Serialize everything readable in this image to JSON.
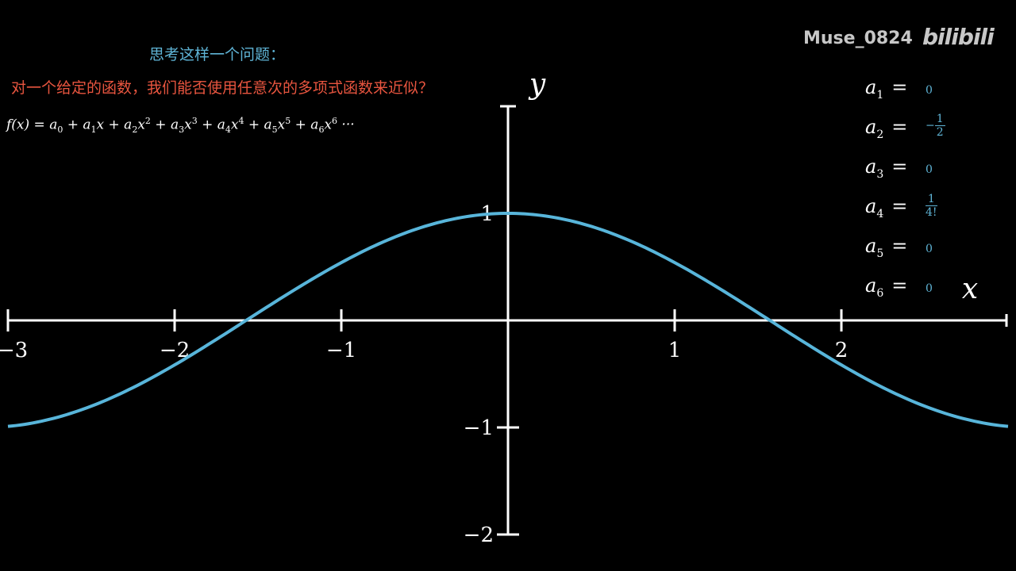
{
  "question": {
    "title": "思考这样一个问题：",
    "text": "对一个给定的函数，我们能否使用任意次的多项式函数来近似？"
  },
  "polynomial": {
    "lhs": "f(x) = ",
    "terms": [
      "a",
      "0",
      " + a",
      "1",
      "x + a",
      "2",
      "x",
      "2",
      " + a",
      "3",
      "x",
      "3",
      " + a",
      "4",
      "x",
      "4",
      " + a",
      "5",
      "x",
      "5",
      " + a",
      "6",
      "x",
      "6",
      " ···"
    ]
  },
  "watermark": {
    "user": "Muse_0824",
    "logo": "bilibili"
  },
  "coefficients": [
    {
      "name": "a",
      "index": "0",
      "value": ""
    },
    {
      "name": "a",
      "index": "1",
      "value": "0"
    },
    {
      "name": "a",
      "index": "2",
      "value_sign": "−",
      "value_num": "1",
      "value_den": "2"
    },
    {
      "name": "a",
      "index": "3",
      "value": "0"
    },
    {
      "name": "a",
      "index": "4",
      "value_num": "1",
      "value_den": "4!"
    },
    {
      "name": "a",
      "index": "5",
      "value": "0"
    },
    {
      "name": "a",
      "index": "6",
      "value": "0"
    }
  ],
  "chart_data": {
    "type": "line",
    "function": "cos(x)",
    "xlim": [
      -3,
      3
    ],
    "ylim": [
      -2,
      1.3
    ],
    "x_ticks": [
      -3,
      -2,
      -1,
      1,
      2
    ],
    "x_tick_labels": [
      "−3",
      "−2",
      "−1",
      "1",
      "2"
    ],
    "y_ticks": [
      1,
      -1,
      -2
    ],
    "y_tick_labels": [
      "1",
      "−1",
      "−2"
    ],
    "xlabel": "x",
    "ylabel": "y",
    "series": [
      {
        "color": "#58b5da",
        "x": [
          -3,
          -2.75,
          -2.5,
          -2.25,
          -2,
          -1.75,
          -1.5,
          -1.25,
          -1,
          -0.75,
          -0.5,
          -0.25,
          0,
          0.25,
          0.5,
          0.75,
          1,
          1.25,
          1.5,
          1.75,
          2,
          2.25,
          2.5,
          2.75,
          3
        ],
        "y": [
          -0.99,
          -0.924,
          -0.801,
          -0.628,
          -0.416,
          -0.178,
          0.071,
          0.315,
          0.54,
          0.732,
          0.878,
          0.969,
          1.0,
          0.969,
          0.878,
          0.732,
          0.54,
          0.315,
          0.071,
          -0.178,
          -0.416,
          -0.628,
          -0.801,
          -0.924,
          -0.99
        ]
      }
    ],
    "colors": {
      "axis": "#ffffff",
      "curve": "#58b5da",
      "question": "#e8553f",
      "title": "#5fb4d6"
    }
  }
}
